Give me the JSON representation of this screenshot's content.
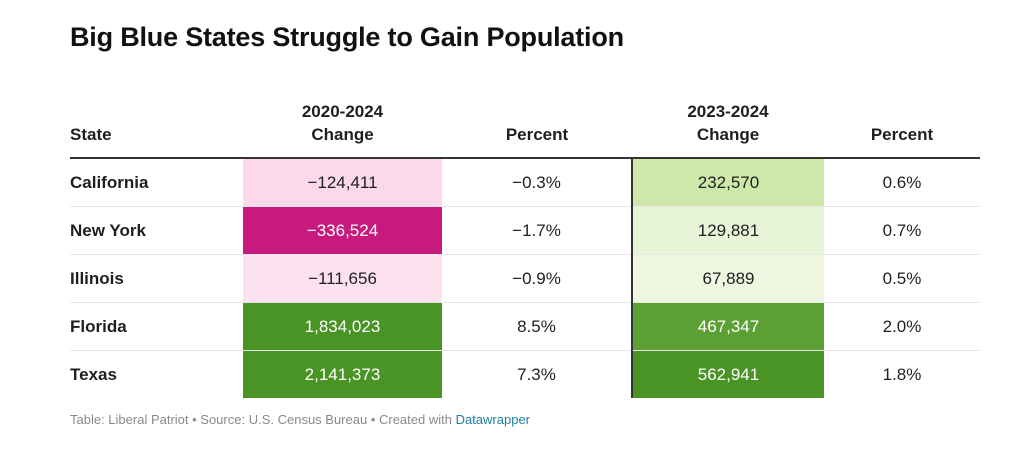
{
  "chart_data": {
    "type": "table",
    "title": "Big Blue States Struggle to Gain Population",
    "columns": [
      "State",
      "2020-2024\nChange",
      "Percent",
      "2023-2024\nChange",
      "Percent"
    ],
    "rows": [
      {
        "state": "California",
        "change_2020_2024": "−124,411",
        "pct_2020_2024": "−0.3%",
        "change_2023_2024": "232,570",
        "pct_2023_2024": "0.6%"
      },
      {
        "state": "New York",
        "change_2020_2024": "−336,524",
        "pct_2020_2024": "−1.7%",
        "change_2023_2024": "129,881",
        "pct_2023_2024": "0.7%"
      },
      {
        "state": "Illinois",
        "change_2020_2024": "−111,656",
        "pct_2020_2024": "−0.9%",
        "change_2023_2024": "67,889",
        "pct_2023_2024": "0.5%"
      },
      {
        "state": "Florida",
        "change_2020_2024": "1,834,023",
        "pct_2020_2024": "8.5%",
        "change_2023_2024": "467,347",
        "pct_2023_2024": "2.0%"
      },
      {
        "state": "Texas",
        "change_2020_2024": "2,141,373",
        "pct_2020_2024": "7.3%",
        "change_2023_2024": "562,941",
        "pct_2023_2024": "1.8%"
      }
    ]
  },
  "colors": {
    "change_2020_2024": [
      {
        "bg": "#fbd8ea",
        "fg": "#1f1f1f"
      },
      {
        "bg": "#c81a7e",
        "fg": "#ffffff"
      },
      {
        "bg": "#fce1ee",
        "fg": "#1f1f1f"
      },
      {
        "bg": "#4a9426",
        "fg": "#ffffff"
      },
      {
        "bg": "#4a9426",
        "fg": "#ffffff"
      }
    ],
    "change_2023_2024": [
      {
        "bg": "#cde8a8",
        "fg": "#1f1f1f"
      },
      {
        "bg": "#e8f4d8",
        "fg": "#1f1f1f"
      },
      {
        "bg": "#eef6e0",
        "fg": "#1f1f1f"
      },
      {
        "bg": "#5c9f33",
        "fg": "#ffffff"
      },
      {
        "bg": "#4a9426",
        "fg": "#ffffff"
      }
    ]
  },
  "footer": {
    "text": "Table: Liberal Patriot • Source: U.S. Census Bureau • Created with ",
    "link": "Datawrapper"
  }
}
